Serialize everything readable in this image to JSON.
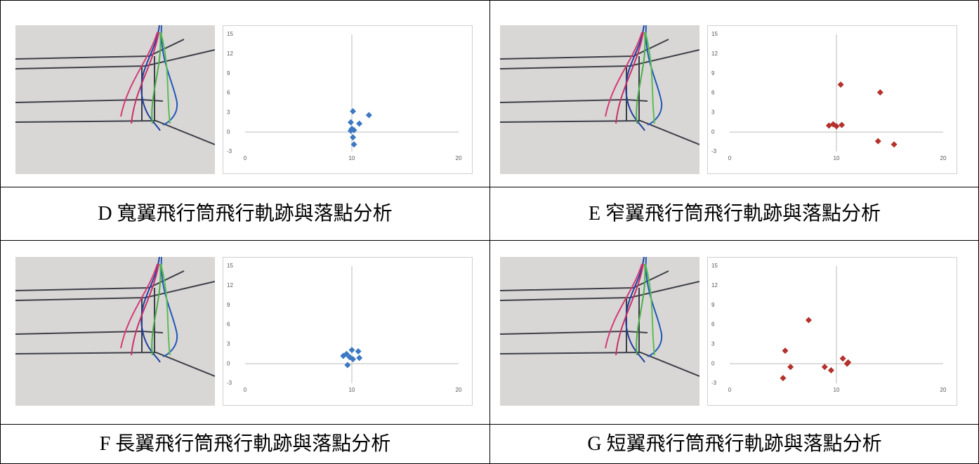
{
  "chart_data": [
    {
      "type": "scatter",
      "color": "#3c78c2",
      "xlim": [
        0,
        20
      ],
      "ylim": [
        -3,
        15
      ],
      "xticks": [
        0,
        10,
        20
      ],
      "yticks": [
        -3,
        0,
        3,
        6,
        9,
        12,
        15
      ],
      "x": [
        10.1,
        11.6,
        9.9,
        10.7,
        10.0,
        9.9,
        10.2,
        10.1,
        10.2
      ],
      "values": [
        3.2,
        2.6,
        1.5,
        1.3,
        0.5,
        0.2,
        0.3,
        -0.8,
        -1.9
      ]
    },
    {
      "type": "scatter",
      "color": "#b5312b",
      "xlim": [
        0,
        20
      ],
      "ylim": [
        -3,
        15
      ],
      "xticks": [
        0,
        10,
        20
      ],
      "yticks": [
        -3,
        0,
        3,
        6,
        9,
        12,
        15
      ],
      "x": [
        10.4,
        14.1,
        9.3,
        9.7,
        10.0,
        10.5,
        13.9,
        15.4
      ],
      "values": [
        7.3,
        6.1,
        1.0,
        1.2,
        0.9,
        1.1,
        -1.4,
        -1.9
      ]
    },
    {
      "type": "scatter",
      "color": "#3c78c2",
      "xlim": [
        0,
        20
      ],
      "ylim": [
        -3,
        15
      ],
      "xticks": [
        0,
        10,
        20
      ],
      "yticks": [
        -3,
        0,
        3,
        6,
        9,
        12,
        15
      ],
      "x": [
        9.2,
        9.5,
        9.6,
        10.0,
        10.1,
        10.6,
        10.7,
        9.8
      ],
      "values": [
        1.2,
        1.5,
        -0.2,
        2.1,
        0.7,
        1.9,
        0.9,
        1.0
      ]
    },
    {
      "type": "scatter",
      "color": "#b5312b",
      "xlim": [
        0,
        20
      ],
      "ylim": [
        -3,
        15
      ],
      "xticks": [
        0,
        10,
        20
      ],
      "yticks": [
        -3,
        0,
        3,
        6,
        9,
        12,
        15
      ],
      "x": [
        5.2,
        5.7,
        5.0,
        7.4,
        8.9,
        9.5,
        10.6,
        11.1,
        11.0
      ],
      "values": [
        2.0,
        -0.5,
        -2.2,
        6.7,
        -0.5,
        -1.0,
        0.8,
        0.2,
        0.0
      ]
    }
  ],
  "captions": [
    "D 寬翼飛行筒飛行軌跡與落點分析",
    "E 窄翼飛行筒飛行軌跡與落點分析",
    "F 長翼飛行筒飛行軌跡與落點分析",
    "G 短翼飛行筒飛行軌跡與落點分析"
  ]
}
